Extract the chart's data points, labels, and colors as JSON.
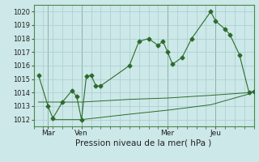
{
  "background_color": "#cce8e8",
  "grid_color": "#aacccc",
  "line_color": "#2d6b2d",
  "marker_color": "#2d6b2d",
  "marker_style": "D",
  "marker_size": 2.5,
  "title": "Pression niveau de la mer( hPa )",
  "title_fontsize": 8,
  "ylabel_ticks": [
    1012,
    1013,
    1014,
    1015,
    1016,
    1017,
    1018,
    1019,
    1020
  ],
  "xlim": [
    0,
    23
  ],
  "ylim": [
    1011.5,
    1020.5
  ],
  "xtick_positions": [
    1.5,
    5,
    14,
    19
  ],
  "xtick_labels": [
    "Mar",
    "Ven",
    "Mer",
    "Jeu"
  ],
  "vlines": [
    1.5,
    5,
    14,
    19
  ],
  "series_main": [
    [
      0.5,
      1015.3
    ],
    [
      1.5,
      1013.0
    ],
    [
      2.0,
      1012.1
    ],
    [
      3.0,
      1013.3
    ],
    [
      4.0,
      1014.15
    ],
    [
      4.5,
      1013.7
    ],
    [
      5.0,
      1012.0
    ],
    [
      5.5,
      1015.2
    ],
    [
      6.0,
      1015.3
    ],
    [
      6.5,
      1014.5
    ],
    [
      7.0,
      1014.5
    ],
    [
      10.0,
      1016.0
    ],
    [
      11.0,
      1017.8
    ],
    [
      12.0,
      1018.0
    ],
    [
      13.0,
      1017.5
    ],
    [
      13.5,
      1017.8
    ],
    [
      14.0,
      1017.0
    ],
    [
      14.5,
      1016.1
    ],
    [
      15.5,
      1016.6
    ],
    [
      16.5,
      1018.0
    ],
    [
      18.5,
      1020.0
    ],
    [
      19.0,
      1019.3
    ],
    [
      20.0,
      1018.7
    ],
    [
      20.5,
      1018.3
    ],
    [
      21.5,
      1016.8
    ],
    [
      22.5,
      1014.0
    ],
    [
      23.0,
      1014.1
    ]
  ],
  "series_mid": [
    [
      0.5,
      1013.3
    ],
    [
      5.0,
      1013.3
    ],
    [
      10.0,
      1013.5
    ],
    [
      14.0,
      1013.6
    ],
    [
      18.5,
      1013.8
    ],
    [
      22.5,
      1014.0
    ],
    [
      23.0,
      1014.1
    ]
  ],
  "series_low": [
    [
      2.0,
      1012.0
    ],
    [
      5.0,
      1012.0
    ],
    [
      10.0,
      1012.4
    ],
    [
      14.0,
      1012.7
    ],
    [
      18.5,
      1013.1
    ],
    [
      22.5,
      1013.9
    ],
    [
      23.0,
      1014.1
    ]
  ]
}
